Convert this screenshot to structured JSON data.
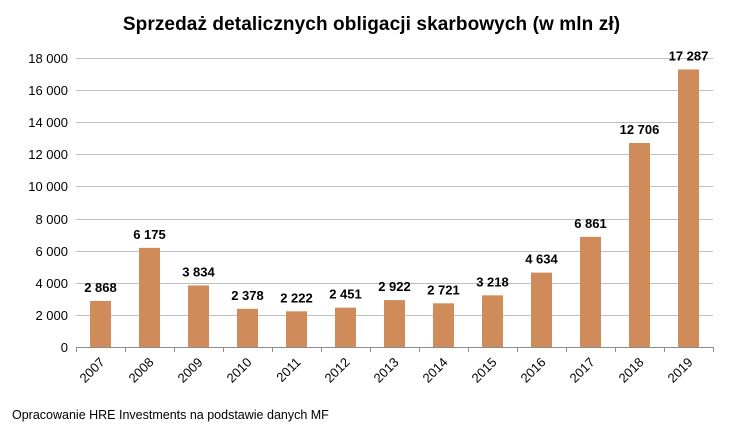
{
  "title": "Sprzedaż detalicznych obligacji skarbowych (w mln zł)",
  "source_note": "Opracowanie HRE Investments na podstawie danych MF",
  "colors": {
    "bar": "#D08B5B",
    "grid": "#BFBFBF",
    "axis": "#8C8C8C"
  },
  "chart_data": {
    "type": "bar",
    "title": "Sprzedaż detalicznych obligacji skarbowych (w mln zł)",
    "xlabel": "",
    "ylabel": "",
    "categories": [
      "2007",
      "2008",
      "2009",
      "2010",
      "2011",
      "2012",
      "2013",
      "2014",
      "2015",
      "2016",
      "2017",
      "2018",
      "2019"
    ],
    "values": [
      2868,
      6175,
      3834,
      2378,
      2222,
      2451,
      2922,
      2721,
      3218,
      4634,
      6861,
      12706,
      17287
    ],
    "value_labels": [
      "2 868",
      "6 175",
      "3 834",
      "2 378",
      "2 222",
      "2 451",
      "2 922",
      "2 721",
      "3 218",
      "4 634",
      "6 861",
      "12 706",
      "17 287"
    ],
    "ylim": [
      0,
      18000
    ],
    "y_ticks": [
      0,
      2000,
      4000,
      6000,
      8000,
      10000,
      12000,
      14000,
      16000,
      18000
    ],
    "y_tick_labels": [
      "0",
      "2 000",
      "4 000",
      "6 000",
      "8 000",
      "10 000",
      "12 000",
      "14 000",
      "16 000",
      "18 000"
    ],
    "grid": true,
    "legend": "none"
  }
}
